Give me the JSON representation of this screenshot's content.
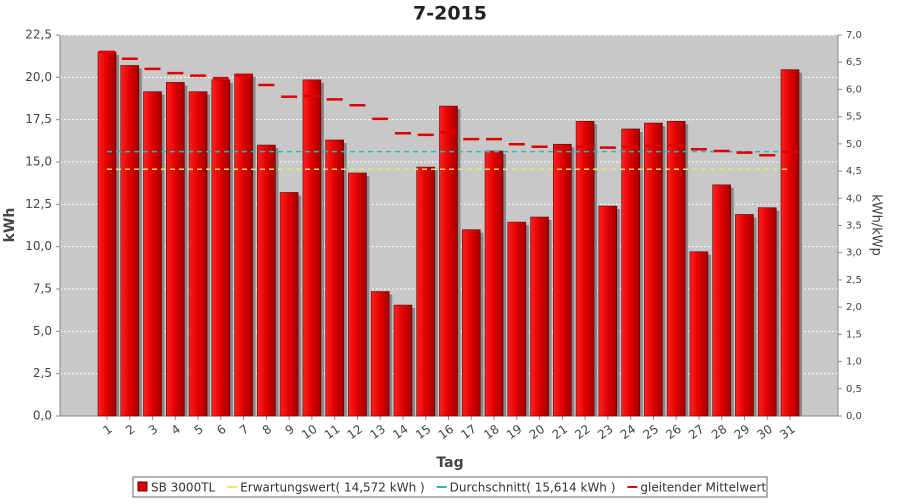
{
  "chart_data": {
    "type": "bar",
    "title": "7-2015",
    "x_label": "Tag",
    "y_label": "kWh",
    "y2_label": "kWh/kWp",
    "categories": [
      "1",
      "2",
      "3",
      "4",
      "5",
      "6",
      "7",
      "8",
      "9",
      "10",
      "11",
      "12",
      "13",
      "14",
      "15",
      "16",
      "17",
      "18",
      "19",
      "20",
      "21",
      "22",
      "23",
      "24",
      "25",
      "26",
      "27",
      "28",
      "29",
      "30",
      "31"
    ],
    "series": [
      {
        "name": "SB 3000TL",
        "type": "bar",
        "color": "#e00000",
        "values": [
          21.5,
          20.7,
          19.15,
          19.7,
          19.15,
          19.85,
          20.2,
          16.0,
          13.2,
          19.85,
          16.3,
          14.35,
          7.35,
          6.55,
          14.7,
          18.3,
          11.0,
          15.65,
          11.45,
          11.75,
          16.05,
          17.4,
          12.4,
          16.95,
          17.3,
          17.4,
          9.7,
          13.65,
          11.9,
          12.3,
          20.45
        ]
      },
      {
        "name": "Erwartungswert( 14,572 kWh )",
        "type": "hline",
        "color": "#e8e86a",
        "value": 14.572
      },
      {
        "name": "Durchschnitt( 15,614 kWh )",
        "type": "hline",
        "color": "#33b5b5",
        "value": 15.614
      },
      {
        "name": "gleitender Mittelwert",
        "type": "dash",
        "color": "#e00000",
        "values": [
          21.5,
          21.1,
          20.5,
          20.25,
          20.1,
          19.95,
          20.1,
          19.55,
          18.85,
          18.9,
          18.7,
          18.35,
          17.55,
          16.7,
          16.6,
          16.75,
          16.35,
          16.35,
          16.05,
          15.9,
          15.85,
          15.9,
          15.85,
          15.9,
          15.95,
          16.0,
          15.75,
          15.65,
          15.55,
          15.4,
          15.6
        ]
      }
    ],
    "ylim": [
      0,
      22.5
    ],
    "yticks": [
      {
        "value": 0,
        "label": "0,0"
      },
      {
        "value": 2.5,
        "label": "2,5"
      },
      {
        "value": 5,
        "label": "5,0"
      },
      {
        "value": 7.5,
        "label": "7,5"
      },
      {
        "value": 10,
        "label": "10,0"
      },
      {
        "value": 12.5,
        "label": "12,5"
      },
      {
        "value": 15,
        "label": "15,0"
      },
      {
        "value": 17.5,
        "label": "17,5"
      },
      {
        "value": 20,
        "label": "20,0"
      },
      {
        "value": 22.5,
        "label": "22,5"
      }
    ],
    "y2lim": [
      0,
      7
    ],
    "y2ticks": [
      {
        "value": 0,
        "label": "0,0"
      },
      {
        "value": 0.5,
        "label": "0,5"
      },
      {
        "value": 1,
        "label": "1,0"
      },
      {
        "value": 1.5,
        "label": "1,5"
      },
      {
        "value": 2,
        "label": "2,0"
      },
      {
        "value": 2.5,
        "label": "2,5"
      },
      {
        "value": 3,
        "label": "3,0"
      },
      {
        "value": 3.5,
        "label": "3,5"
      },
      {
        "value": 4,
        "label": "4,0"
      },
      {
        "value": 4.5,
        "label": "4,5"
      },
      {
        "value": 5,
        "label": "5,0"
      },
      {
        "value": 5.5,
        "label": "5,5"
      },
      {
        "value": 6,
        "label": "6,0"
      },
      {
        "value": 6.5,
        "label": "6,5"
      },
      {
        "value": 7,
        "label": "7,0"
      }
    ],
    "grid": true,
    "legend": "bottom"
  }
}
